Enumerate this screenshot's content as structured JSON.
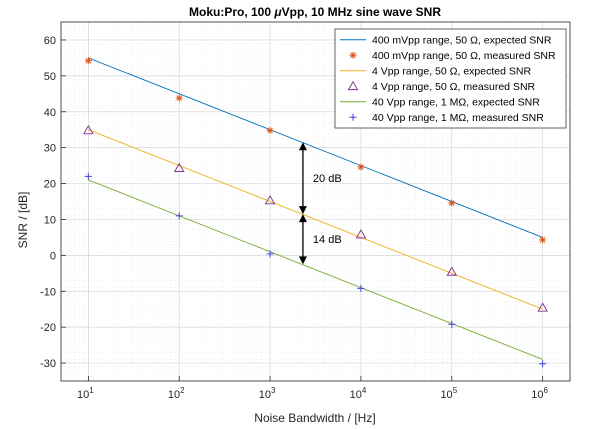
{
  "chart_data": {
    "type": "line",
    "title_prefix": "Moku:Pro, 100 ",
    "title_mu": "μ",
    "title_suffix": "Vpp, 10 MHz sine wave SNR",
    "xlabel": "Noise Bandwidth / [Hz]",
    "ylabel": "SNR / [dB]",
    "xscale": "log",
    "xlim": [
      5,
      2000000
    ],
    "ylim": [
      -35,
      65
    ],
    "xticks": [
      10,
      100,
      1000,
      10000,
      100000,
      1000000
    ],
    "xtick_labels": [
      {
        "base": "10",
        "exp": "1"
      },
      {
        "base": "10",
        "exp": "2"
      },
      {
        "base": "10",
        "exp": "3"
      },
      {
        "base": "10",
        "exp": "4"
      },
      {
        "base": "10",
        "exp": "5"
      },
      {
        "base": "10",
        "exp": "6"
      }
    ],
    "yticks": [
      -30,
      -20,
      -10,
      0,
      10,
      20,
      30,
      40,
      50,
      60
    ],
    "ytick_labels": [
      "-30",
      "-20",
      "-10",
      "0",
      "10",
      "20",
      "30",
      "40",
      "50",
      "60"
    ],
    "grid": true,
    "minor_grid": true,
    "legend_position": "top-right",
    "series": [
      {
        "name": "400 mVpp range, 50 Ω, expected SNR",
        "kind": "line",
        "color": "#0072BD",
        "x": [
          10,
          1000000
        ],
        "y": [
          55,
          5
        ]
      },
      {
        "name": "400 mVpp range, 50 Ω, measured SNR",
        "kind": "marker",
        "marker": "asterisk",
        "color": "#D95319",
        "x": [
          10,
          100,
          1000,
          10000,
          100000,
          1000000
        ],
        "y": [
          54.2,
          43.8,
          34.8,
          24.6,
          14.6,
          4.3
        ]
      },
      {
        "name": "4 Vpp range, 50 Ω, expected SNR",
        "kind": "line",
        "color": "#EDB120",
        "x": [
          10,
          1000000
        ],
        "y": [
          35,
          -15
        ]
      },
      {
        "name": "4 Vpp range, 50 Ω, measured SNR",
        "kind": "marker",
        "marker": "triangle",
        "color": "#7E2F8E",
        "x": [
          10,
          100,
          1000,
          10000,
          100000,
          1000000
        ],
        "y": [
          34.8,
          24.3,
          15.3,
          5.8,
          -4.6,
          -14.6
        ]
      },
      {
        "name": "40 Vpp range, 1 MΩ, expected SNR",
        "kind": "line",
        "color": "#77AC30",
        "x": [
          10,
          1000000
        ],
        "y": [
          21,
          -29
        ]
      },
      {
        "name": "40 Vpp range, 1 MΩ, measured SNR",
        "kind": "marker",
        "marker": "plus",
        "color": "#4040E0",
        "x": [
          10,
          100,
          1000,
          10000,
          100000,
          1000000
        ],
        "y": [
          22,
          11,
          0.4,
          -9.2,
          -19.2,
          -30.2
        ]
      }
    ],
    "annotations": [
      {
        "text": "20 dB",
        "x": 2300,
        "y_from": 31.5,
        "y_to": 11.5
      },
      {
        "text": "14 dB",
        "x": 2300,
        "y_from": 11.5,
        "y_to": -2.5
      }
    ]
  }
}
